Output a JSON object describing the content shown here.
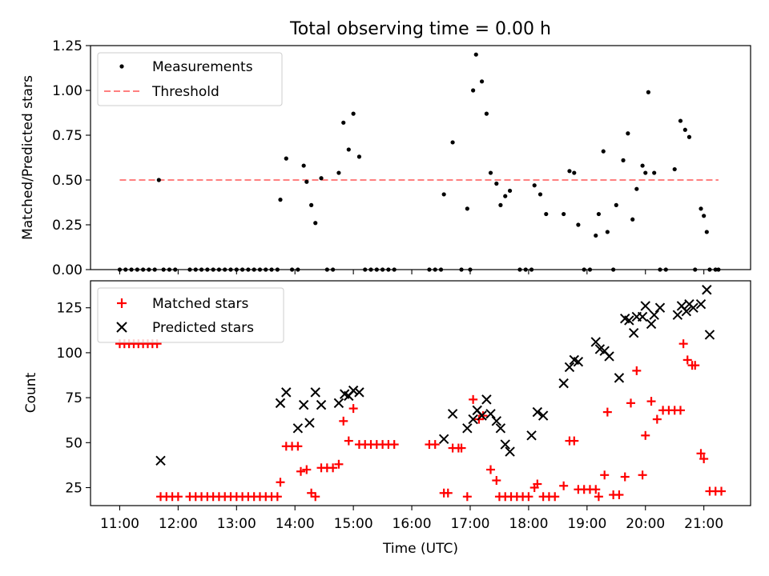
{
  "figure": {
    "title": "Total observing time = 0.00 h"
  },
  "chart_data": [
    {
      "type": "scatter",
      "ylabel": "Matched/Predicted stars",
      "xlim": [
        10.5,
        21.8
      ],
      "ylim": [
        0,
        1.25
      ],
      "yticks": [
        "0.00",
        "0.25",
        "0.50",
        "0.75",
        "1.00",
        "1.25"
      ],
      "grid": false,
      "legend": "top-left",
      "legend_entries": [
        "Measurements",
        "Threshold"
      ],
      "threshold": {
        "name": "Threshold",
        "y": 0.5,
        "x": [
          11.0,
          21.25
        ],
        "color": "#ff8080",
        "style": "dashed"
      },
      "series": [
        {
          "name": "Measurements",
          "marker": "dot",
          "color": "#000000",
          "x": [
            11.0,
            11.1,
            11.2,
            11.3,
            11.4,
            11.5,
            11.6,
            11.67,
            11.75,
            11.85,
            11.95,
            12.2,
            12.3,
            12.4,
            12.5,
            12.6,
            12.7,
            12.8,
            12.9,
            13.0,
            13.1,
            13.2,
            13.3,
            13.4,
            13.5,
            13.6,
            13.7,
            13.75,
            13.85,
            13.95,
            14.05,
            14.15,
            14.2,
            14.28,
            14.35,
            14.45,
            14.55,
            14.65,
            14.75,
            14.83,
            14.92,
            15.0,
            15.1,
            15.2,
            15.3,
            15.4,
            15.5,
            15.6,
            15.7,
            16.3,
            16.4,
            16.5,
            16.55,
            16.7,
            16.85,
            16.95,
            17.0,
            17.05,
            17.1,
            17.2,
            17.28,
            17.35,
            17.45,
            17.52,
            17.6,
            17.68,
            17.85,
            17.95,
            18.05,
            18.1,
            18.2,
            18.3,
            18.6,
            18.7,
            18.78,
            18.85,
            18.95,
            19.05,
            19.15,
            19.2,
            19.28,
            19.35,
            19.45,
            19.5,
            19.62,
            19.7,
            19.78,
            19.85,
            19.95,
            20.0,
            20.05,
            20.15,
            20.25,
            20.35,
            20.5,
            20.6,
            20.68,
            20.75,
            20.85,
            20.95,
            21.0,
            21.05,
            21.1,
            21.2,
            21.25
          ],
          "y": [
            0,
            0,
            0,
            0,
            0,
            0,
            0,
            0.5,
            0,
            0,
            0,
            0,
            0,
            0,
            0,
            0,
            0,
            0,
            0,
            0,
            0,
            0,
            0,
            0,
            0,
            0,
            0,
            0.39,
            0.62,
            0,
            0,
            0.58,
            0.49,
            0.36,
            0.26,
            0.51,
            0,
            0,
            0.54,
            0.82,
            0.67,
            0.87,
            0.63,
            0,
            0,
            0,
            0,
            0,
            0,
            0,
            0,
            0,
            0.42,
            0.71,
            0,
            0.34,
            0,
            1.0,
            1.2,
            1.05,
            0.87,
            0.54,
            0.48,
            0.36,
            0.41,
            0.44,
            0,
            0,
            0,
            0.47,
            0.42,
            0.31,
            0.31,
            0.55,
            0.54,
            0.25,
            0,
            0,
            0.19,
            0.31,
            0.66,
            0.21,
            0,
            0.36,
            0.61,
            0.76,
            0.28,
            0.45,
            0.58,
            0.54,
            0.99,
            0.54,
            0,
            0,
            0.56,
            0.83,
            0.78,
            0.74,
            0,
            0.34,
            0.3,
            0.21,
            0,
            0,
            0
          ]
        }
      ]
    },
    {
      "type": "scatter",
      "xlabel": "Time (UTC)",
      "ylabel": "Count",
      "xlim": [
        10.5,
        21.8
      ],
      "ylim": [
        15,
        140
      ],
      "xticks": [
        "11:00",
        "12:00",
        "13:00",
        "14:00",
        "15:00",
        "16:00",
        "17:00",
        "18:00",
        "19:00",
        "20:00",
        "21:00"
      ],
      "yticks": [
        "25",
        "50",
        "75",
        "100",
        "125"
      ],
      "grid": false,
      "legend": "top-left",
      "series": [
        {
          "name": "Matched stars",
          "marker": "plus",
          "color": "#ff0000",
          "x": [
            11.0,
            11.08,
            11.16,
            11.24,
            11.32,
            11.4,
            11.48,
            11.56,
            11.64,
            11.7,
            11.8,
            11.9,
            12.0,
            12.2,
            12.3,
            12.4,
            12.5,
            12.6,
            12.7,
            12.8,
            12.9,
            13.0,
            13.1,
            13.2,
            13.3,
            13.4,
            13.5,
            13.6,
            13.7,
            13.75,
            13.85,
            13.95,
            14.05,
            14.1,
            14.2,
            14.28,
            14.35,
            14.45,
            14.55,
            14.65,
            14.75,
            14.83,
            14.92,
            15.0,
            15.1,
            15.2,
            15.3,
            15.4,
            15.5,
            15.6,
            15.7,
            16.3,
            16.4,
            16.55,
            16.62,
            16.7,
            16.8,
            16.85,
            16.95,
            17.05,
            17.15,
            17.22,
            17.35,
            17.45,
            17.5,
            17.6,
            17.7,
            17.8,
            17.9,
            18.0,
            18.1,
            18.15,
            18.25,
            18.35,
            18.45,
            18.6,
            18.7,
            18.78,
            18.85,
            18.95,
            19.05,
            19.15,
            19.2,
            19.3,
            19.35,
            19.45,
            19.55,
            19.65,
            19.75,
            19.85,
            19.95,
            20.0,
            20.1,
            20.2,
            20.3,
            20.4,
            20.5,
            20.6,
            20.65,
            20.72,
            20.8,
            20.85,
            20.95,
            21.0,
            21.1,
            21.2,
            21.3
          ],
          "y": [
            105,
            105,
            105,
            105,
            105,
            105,
            105,
            105,
            105,
            20,
            20,
            20,
            20,
            20,
            20,
            20,
            20,
            20,
            20,
            20,
            20,
            20,
            20,
            20,
            20,
            20,
            20,
            20,
            20,
            28,
            48,
            48,
            48,
            34,
            35,
            22,
            20,
            36,
            36,
            36,
            38,
            62,
            51,
            69,
            49,
            49,
            49,
            49,
            49,
            49,
            49,
            49,
            49,
            22,
            22,
            47,
            47,
            47,
            20,
            74,
            63,
            65,
            35,
            29,
            20,
            20,
            20,
            20,
            20,
            20,
            25,
            27,
            20,
            20,
            20,
            26,
            51,
            51,
            24,
            24,
            24,
            24,
            20,
            32,
            67,
            21,
            21,
            31,
            72,
            90,
            32,
            54,
            73,
            63,
            68,
            68,
            68,
            68,
            105,
            96,
            93,
            93,
            44,
            41,
            23,
            23,
            23
          ]
        },
        {
          "name": "Predicted stars",
          "marker": "x",
          "color": "#000000",
          "x": [
            11.7,
            13.75,
            13.85,
            14.05,
            14.15,
            14.25,
            14.35,
            14.45,
            14.75,
            14.85,
            14.92,
            15.0,
            15.1,
            16.55,
            16.7,
            16.95,
            17.05,
            17.12,
            17.2,
            17.28,
            17.35,
            17.45,
            17.52,
            17.6,
            17.68,
            18.05,
            18.15,
            18.25,
            18.6,
            18.7,
            18.78,
            18.85,
            19.15,
            19.22,
            19.3,
            19.38,
            19.55,
            19.65,
            19.72,
            19.8,
            19.85,
            19.95,
            20.0,
            20.1,
            20.15,
            20.25,
            20.55,
            20.62,
            20.7,
            20.75,
            20.82,
            20.95,
            21.05,
            21.1
          ],
          "y": [
            40,
            72,
            78,
            58,
            71,
            61,
            78,
            71,
            72,
            77,
            76,
            79,
            78,
            52,
            66,
            58,
            63,
            68,
            65,
            74,
            66,
            62,
            58,
            49,
            45,
            54,
            67,
            65,
            83,
            92,
            96,
            95,
            106,
            102,
            101,
            98,
            86,
            119,
            118,
            111,
            120,
            120,
            126,
            116,
            121,
            125,
            121,
            126,
            123,
            127,
            125,
            127,
            135,
            110
          ]
        }
      ]
    }
  ]
}
